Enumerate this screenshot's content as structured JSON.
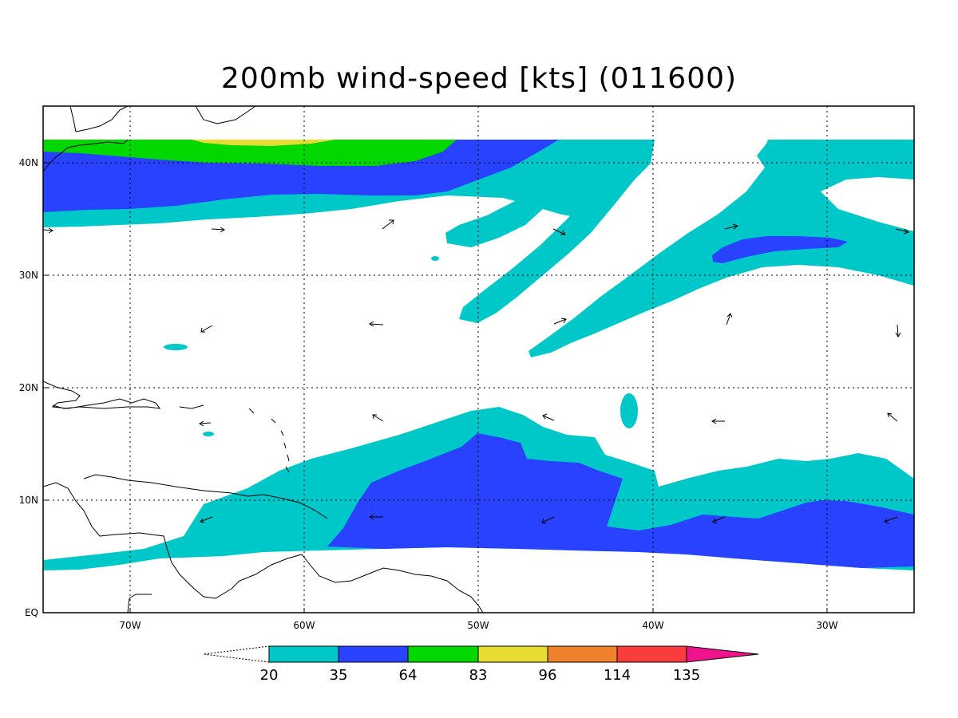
{
  "title": "200mb wind-speed [kts] (011600)",
  "axes": {
    "y_labels": [
      "40N",
      "30N",
      "20N",
      "10N",
      "EQ"
    ],
    "x_labels": [
      "70W",
      "60W",
      "50W",
      "40W",
      "30W"
    ]
  },
  "colorbar": {
    "ticks": [
      "20",
      "35",
      "64",
      "83",
      "96",
      "114",
      "135"
    ],
    "colors": [
      "#00c8c8",
      "#2842ff",
      "#00d800",
      "#e6dc32",
      "#f0822d",
      "#fa3c3c",
      "#f0148c"
    ]
  },
  "colors": {
    "cyan": "#00c8c8",
    "blue": "#2842ff",
    "green": "#00d800",
    "yellow": "#e6dc32"
  }
}
